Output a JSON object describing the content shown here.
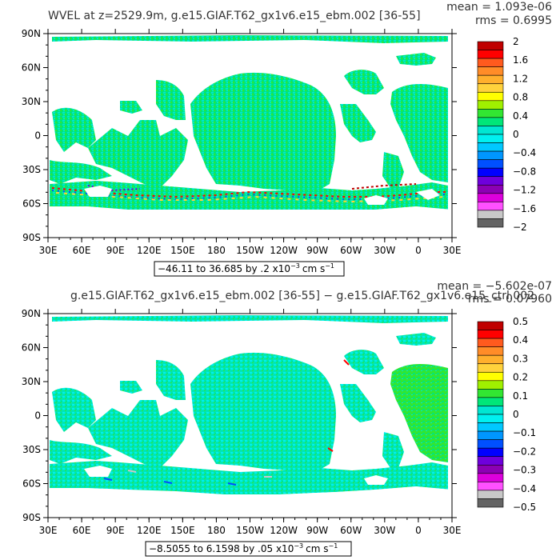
{
  "chart_data": [
    {
      "type": "heatmap",
      "title": "WVEL at z=2529.9m, g.e15.GIAF.T62_gx1v6.e15_ebm.002 [36-55]",
      "stats": {
        "mean": "mean = 1.093e-06",
        "rms": "rms = 0.6995"
      },
      "x_ticks": [
        "30E",
        "60E",
        "90E",
        "120E",
        "150E",
        "180",
        "150W",
        "120W",
        "90W",
        "60W",
        "30W",
        "0",
        "30E"
      ],
      "y_ticks": [
        "90N",
        "60N",
        "30N",
        "0",
        "30S",
        "60S",
        "90S"
      ],
      "range_note": "−46.11 to 36.685 by .2 x10",
      "range_exp": "−3",
      "range_units": "cm s",
      "range_units_exp": "−1",
      "colorbar_labels": [
        "2",
        "1.6",
        "1.2",
        "0.8",
        "0.4",
        "0",
        "−0.4",
        "−0.8",
        "−1.2",
        "−1.6",
        "−2"
      ],
      "colors": [
        "#c00000",
        "#ff0000",
        "#ff5a1e",
        "#ff8c28",
        "#ffaf2d",
        "#ffd23c",
        "#ffff00",
        "#a0f000",
        "#32e632",
        "#00e678",
        "#00e6d2",
        "#00f0f0",
        "#00c8ff",
        "#0096ff",
        "#0050ff",
        "#0000ff",
        "#6e00dc",
        "#8c00b4",
        "#dc00dc",
        "#ff50ff",
        "#c8c8c8",
        "#646464"
      ],
      "dominant_value_range": [
        -0.4,
        0.4
      ]
    },
    {
      "type": "heatmap",
      "title": "g.e15.GIAF.T62_gx1v6.e15_ebm.002 [36-55] − g.e15.GIAF.T62_gx1v6.e15_ctrl.002",
      "stats": {
        "mean": "mean = −5.602e-07",
        "rms": "rms = 0.07960"
      },
      "x_ticks": [
        "30E",
        "60E",
        "90E",
        "120E",
        "150E",
        "180",
        "150W",
        "120W",
        "90W",
        "60W",
        "30W",
        "0",
        "30E"
      ],
      "y_ticks": [
        "90N",
        "60N",
        "30N",
        "0",
        "30S",
        "60S",
        "90S"
      ],
      "range_note": "−8.5055 to 6.1598 by .05 x10",
      "range_exp": "−3",
      "range_units": "cm s",
      "range_units_exp": "−1",
      "colorbar_labels": [
        "0.5",
        "0.4",
        "0.3",
        "0.2",
        "0.1",
        "0",
        "−0.1",
        "−0.2",
        "−0.3",
        "−0.4",
        "−0.5"
      ],
      "colors": [
        "#c00000",
        "#ff0000",
        "#ff5a1e",
        "#ff8c28",
        "#ffaf2d",
        "#ffd23c",
        "#ffff00",
        "#a0f000",
        "#32e632",
        "#00e678",
        "#00e6d2",
        "#00f0f0",
        "#00c8ff",
        "#0096ff",
        "#0050ff",
        "#0000ff",
        "#6e00dc",
        "#8c00b4",
        "#dc00dc",
        "#ff50ff",
        "#c8c8c8",
        "#646464"
      ],
      "dominant_value_range": [
        -0.1,
        0.1
      ]
    }
  ]
}
